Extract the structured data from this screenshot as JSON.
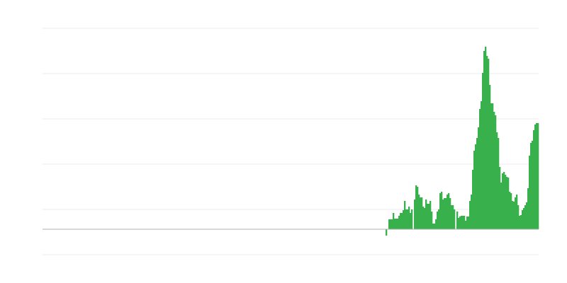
{
  "chart_data": {
    "type": "bar",
    "title": "",
    "xlabel": "",
    "ylabel": "",
    "xlim": [
      0,
      350
    ],
    "ylim": [
      -36,
      284
    ],
    "grid": true,
    "grid_step": 64,
    "legend": "none",
    "bar_color": "#38b14c",
    "grid_color": "#ebebeb",
    "baseline_color": "#b0b0b0",
    "x_start": 242,
    "values": [
      -9,
      0,
      14,
      14,
      14,
      23,
      15,
      15,
      15,
      19,
      23,
      23,
      27,
      40,
      28,
      28,
      32,
      23,
      28,
      0,
      42,
      62,
      60,
      49,
      45,
      45,
      32,
      30,
      42,
      36,
      36,
      40,
      25,
      8,
      8,
      14,
      25,
      28,
      51,
      53,
      42,
      44,
      44,
      49,
      51,
      44,
      34,
      34,
      28,
      0,
      25,
      16,
      18,
      19,
      19,
      19,
      12,
      18,
      18,
      40,
      49,
      84,
      111,
      120,
      129,
      144,
      170,
      181,
      221,
      252,
      258,
      245,
      241,
      204,
      178,
      178,
      166,
      161,
      137,
      129,
      88,
      66,
      79,
      81,
      77,
      74,
      73,
      53,
      51,
      40,
      39,
      45,
      49,
      34,
      19,
      20,
      27,
      30,
      34,
      38,
      58,
      104,
      122,
      125,
      140,
      148,
      150,
      150
    ]
  }
}
